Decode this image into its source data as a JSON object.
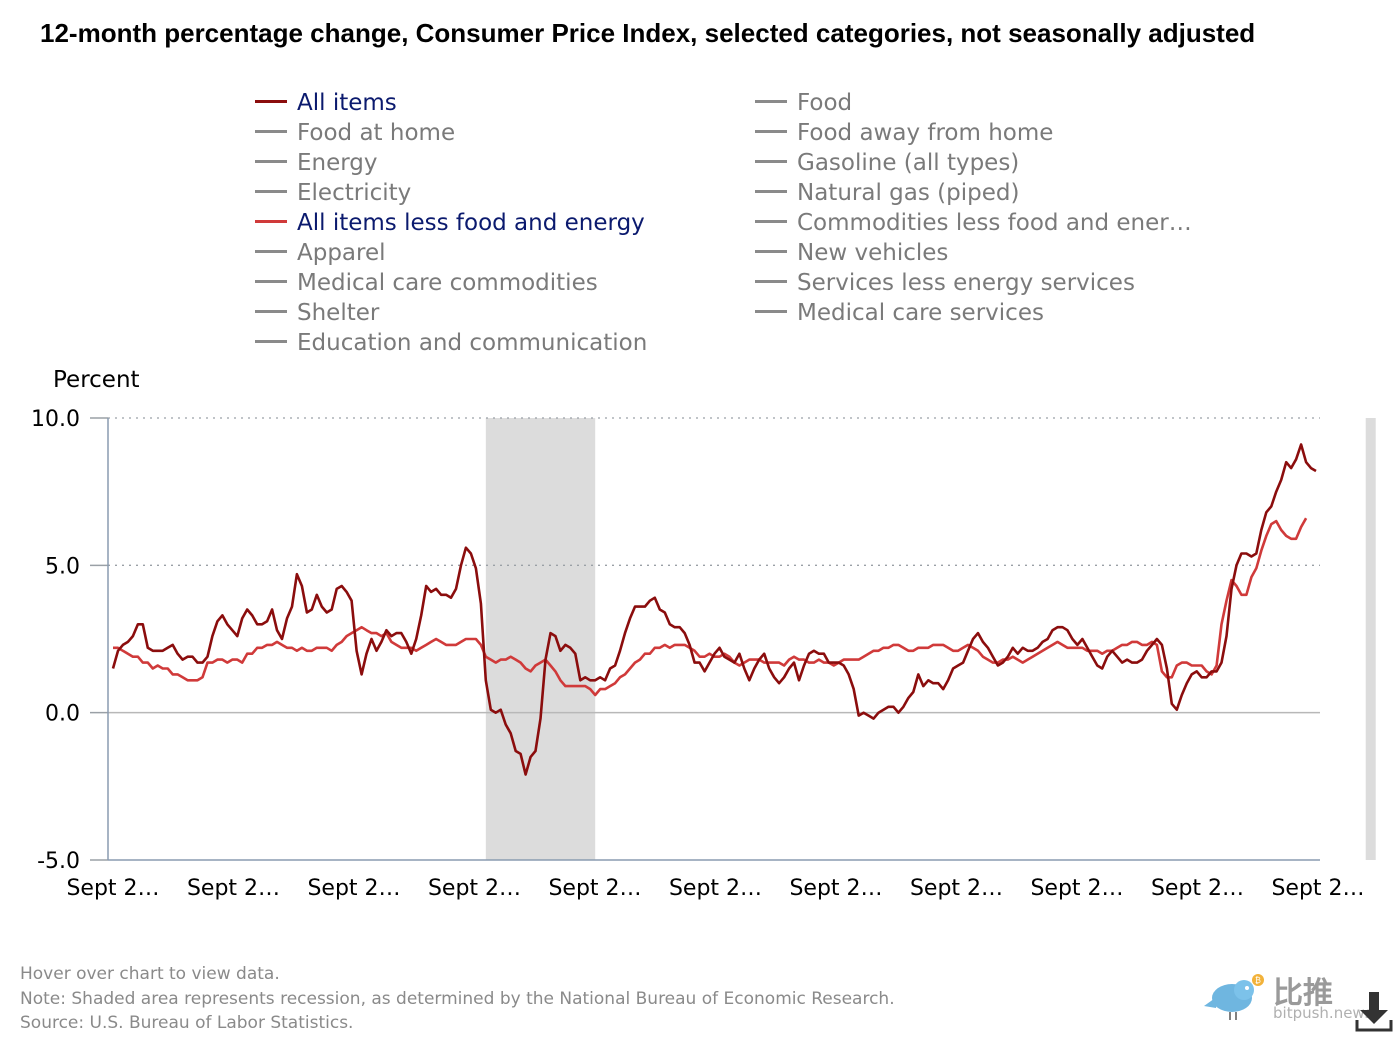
{
  "title": "12-month percentage change, Consumer Price Index, selected categories, not seasonally adjusted",
  "legend": [
    {
      "label": "All items",
      "color": "#8b0d0d",
      "active": true
    },
    {
      "label": "Food",
      "color": "#8a8a8a",
      "active": false
    },
    {
      "label": "Food at home",
      "color": "#8a8a8a",
      "active": false
    },
    {
      "label": "Food away from home",
      "color": "#8a8a8a",
      "active": false
    },
    {
      "label": "Energy",
      "color": "#8a8a8a",
      "active": false
    },
    {
      "label": "Gasoline (all types)",
      "color": "#8a8a8a",
      "active": false
    },
    {
      "label": "Electricity",
      "color": "#8a8a8a",
      "active": false
    },
    {
      "label": "Natural gas (piped)",
      "color": "#8a8a8a",
      "active": false
    },
    {
      "label": "All items less food and energy",
      "color": "#d03a3a",
      "active": true
    },
    {
      "label": "Commodities less food and ener…",
      "color": "#8a8a8a",
      "active": false
    },
    {
      "label": "Apparel",
      "color": "#8a8a8a",
      "active": false
    },
    {
      "label": "New vehicles",
      "color": "#8a8a8a",
      "active": false
    },
    {
      "label": "Medical care commodities",
      "color": "#8a8a8a",
      "active": false
    },
    {
      "label": "Services less energy services",
      "color": "#8a8a8a",
      "active": false
    },
    {
      "label": "Shelter",
      "color": "#8a8a8a",
      "active": false
    },
    {
      "label": "Medical care services",
      "color": "#8a8a8a",
      "active": false
    },
    {
      "label": "Education and communication",
      "color": "#8a8a8a",
      "active": false
    }
  ],
  "chart_data": {
    "type": "line",
    "title": "12-month percentage change, Consumer Price Index, selected categories, not seasonally adjusted",
    "ylabel": "Percent",
    "xlabel": "",
    "ylim": [
      -5,
      10
    ],
    "yticks": [
      "10.0",
      "5.0",
      "0.0",
      "-5.0"
    ],
    "yticks_values": [
      10,
      5,
      0,
      -5
    ],
    "xticks": [
      "Sept 2…",
      "Sept 2…",
      "Sept 2…",
      "Sept 2…",
      "Sept 2…",
      "Sept 2…",
      "Sept 2…",
      "Sept 2…",
      "Sept 2…",
      "Sept 2…",
      "Sept 2…"
    ],
    "grid": "horizontal dotted",
    "recessions": [
      [
        75,
        97
      ],
      [
        252,
        254
      ]
    ],
    "series": [
      {
        "name": "All items",
        "color": "#8b0d0d",
        "x_start": 1,
        "values": [
          1.5,
          2.1,
          2.3,
          2.4,
          2.6,
          3.0,
          3.0,
          2.2,
          2.1,
          2.1,
          2.1,
          2.2,
          2.3,
          2.0,
          1.8,
          1.9,
          1.9,
          1.7,
          1.7,
          1.9,
          2.6,
          3.1,
          3.3,
          3.0,
          2.8,
          2.6,
          3.2,
          3.5,
          3.3,
          3.0,
          3.0,
          3.1,
          3.5,
          2.8,
          2.5,
          3.2,
          3.6,
          4.7,
          4.3,
          3.4,
          3.5,
          4.0,
          3.6,
          3.4,
          3.5,
          4.2,
          4.3,
          4.1,
          3.8,
          2.1,
          1.3,
          2.0,
          2.5,
          2.1,
          2.4,
          2.8,
          2.6,
          2.7,
          2.7,
          2.4,
          2.0,
          2.5,
          3.3,
          4.3,
          4.1,
          4.2,
          4.0,
          4.0,
          3.9,
          4.2,
          5.0,
          5.6,
          5.4,
          4.9,
          3.7,
          1.1,
          0.1,
          0.0,
          0.1,
          -0.4,
          -0.7,
          -1.3,
          -1.4,
          -2.1,
          -1.5,
          -1.3,
          -0.2,
          1.8,
          2.7,
          2.6,
          2.1,
          2.3,
          2.2,
          2.0,
          1.1,
          1.2,
          1.1,
          1.1,
          1.2,
          1.1,
          1.5,
          1.6,
          2.1,
          2.7,
          3.2,
          3.6,
          3.6,
          3.6,
          3.8,
          3.9,
          3.5,
          3.4,
          3.0,
          2.9,
          2.9,
          2.7,
          2.3,
          1.7,
          1.7,
          1.4,
          1.7,
          2.0,
          2.2,
          1.9,
          1.8,
          1.7,
          2.0,
          1.5,
          1.1,
          1.5,
          1.8,
          2.0,
          1.5,
          1.2,
          1.0,
          1.2,
          1.5,
          1.7,
          1.1,
          1.6,
          2.0,
          2.1,
          2.0,
          2.0,
          1.7,
          1.7,
          1.7,
          1.6,
          1.3,
          0.8,
          -0.1,
          0.0,
          -0.1,
          -0.2,
          0.0,
          0.1,
          0.2,
          0.2,
          0.0,
          0.2,
          0.5,
          0.7,
          1.3,
          0.9,
          1.1,
          1.0,
          1.0,
          0.8,
          1.1,
          1.5,
          1.6,
          1.7,
          2.1,
          2.5,
          2.7,
          2.4,
          2.2,
          1.9,
          1.6,
          1.7,
          1.9,
          2.2,
          2.0,
          2.2,
          2.1,
          2.1,
          2.2,
          2.4,
          2.5,
          2.8,
          2.9,
          2.9,
          2.8,
          2.5,
          2.3,
          2.5,
          2.2,
          1.9,
          1.6,
          1.5,
          1.9,
          2.1,
          1.9,
          1.7,
          1.8,
          1.7,
          1.7,
          1.8,
          2.1,
          2.3,
          2.5,
          2.3,
          1.5,
          0.3,
          0.1,
          0.6,
          1.0,
          1.3,
          1.4,
          1.2,
          1.2,
          1.4,
          1.4,
          1.7,
          2.6,
          4.2,
          5.0,
          5.4,
          5.4,
          5.3,
          5.4,
          6.2,
          6.8,
          7.0,
          7.5,
          7.9,
          8.5,
          8.3,
          8.6,
          9.1,
          8.5,
          8.3,
          8.2
        ]
      },
      {
        "name": "All items less food and energy",
        "color": "#d03a3a",
        "x_start": 1,
        "values": [
          2.2,
          2.2,
          2.1,
          2.0,
          1.9,
          1.9,
          1.7,
          1.7,
          1.5,
          1.6,
          1.5,
          1.5,
          1.3,
          1.3,
          1.2,
          1.1,
          1.1,
          1.1,
          1.2,
          1.7,
          1.7,
          1.8,
          1.8,
          1.7,
          1.8,
          1.8,
          1.7,
          2.0,
          2.0,
          2.2,
          2.2,
          2.3,
          2.3,
          2.4,
          2.3,
          2.2,
          2.2,
          2.1,
          2.2,
          2.1,
          2.1,
          2.2,
          2.2,
          2.2,
          2.1,
          2.3,
          2.4,
          2.6,
          2.7,
          2.8,
          2.9,
          2.8,
          2.7,
          2.7,
          2.6,
          2.7,
          2.4,
          2.3,
          2.2,
          2.2,
          2.2,
          2.1,
          2.2,
          2.3,
          2.4,
          2.5,
          2.4,
          2.3,
          2.3,
          2.3,
          2.4,
          2.5,
          2.5,
          2.5,
          2.3,
          1.9,
          1.8,
          1.7,
          1.8,
          1.8,
          1.9,
          1.8,
          1.7,
          1.5,
          1.4,
          1.6,
          1.7,
          1.8,
          1.6,
          1.4,
          1.1,
          0.9,
          0.9,
          0.9,
          0.9,
          0.9,
          0.8,
          0.6,
          0.8,
          0.8,
          0.9,
          1.0,
          1.2,
          1.3,
          1.5,
          1.7,
          1.8,
          2.0,
          2.0,
          2.2,
          2.2,
          2.3,
          2.2,
          2.3,
          2.3,
          2.3,
          2.2,
          2.1,
          1.9,
          1.9,
          2.0,
          1.9,
          1.9,
          2.0,
          1.9,
          1.7,
          1.6,
          1.7,
          1.8,
          1.8,
          1.8,
          1.7,
          1.7,
          1.7,
          1.7,
          1.6,
          1.8,
          1.9,
          1.8,
          1.8,
          1.7,
          1.7,
          1.8,
          1.7,
          1.7,
          1.6,
          1.7,
          1.8,
          1.8,
          1.8,
          1.8,
          1.9,
          2.0,
          2.1,
          2.1,
          2.2,
          2.2,
          2.3,
          2.3,
          2.2,
          2.1,
          2.1,
          2.2,
          2.2,
          2.2,
          2.3,
          2.3,
          2.3,
          2.2,
          2.1,
          2.1,
          2.2,
          2.3,
          2.2,
          2.1,
          1.9,
          1.8,
          1.7,
          1.7,
          1.8,
          1.8,
          1.9,
          1.8,
          1.7,
          1.8,
          1.9,
          2.0,
          2.1,
          2.2,
          2.3,
          2.4,
          2.3,
          2.2,
          2.2,
          2.2,
          2.2,
          2.1,
          2.1,
          2.1,
          2.0,
          2.1,
          2.1,
          2.2,
          2.3,
          2.3,
          2.4,
          2.4,
          2.3,
          2.3,
          2.4,
          2.3,
          1.4,
          1.2,
          1.2,
          1.6,
          1.7,
          1.7,
          1.6,
          1.6,
          1.6,
          1.4,
          1.3,
          1.6,
          3.0,
          3.8,
          4.5,
          4.3,
          4.0,
          4.0,
          4.6,
          4.9,
          5.5,
          6.0,
          6.4,
          6.5,
          6.2,
          6.0,
          5.9,
          5.9,
          6.3,
          6.6
        ]
      }
    ]
  },
  "footer": {
    "hover": "Hover over chart to view data.",
    "note": "Note: Shaded area represents recession, as determined by the National Bureau of Economic Research.",
    "source": "Source: U.S. Bureau of Labor Statistics."
  },
  "watermark": {
    "cn": "比推",
    "site": "bitpush.news"
  }
}
